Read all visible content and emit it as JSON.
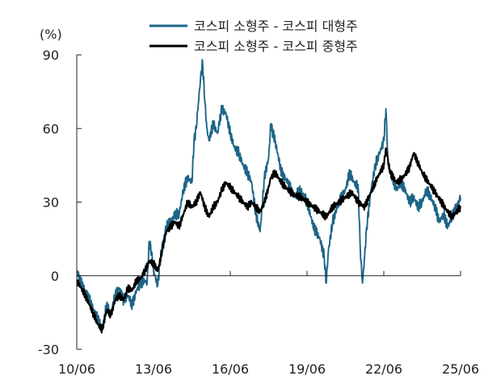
{
  "chart_data": {
    "type": "line",
    "unit_label": "(%)",
    "ylim": [
      -30,
      90
    ],
    "yticks": [
      -30,
      0,
      30,
      60,
      90
    ],
    "x_ticks": [
      "10/06",
      "13/06",
      "16/06",
      "19/06",
      "22/06",
      "25/06"
    ],
    "x_range": [
      "10/06",
      "25/06"
    ],
    "grid": false,
    "legend_position": "top-center",
    "series": [
      {
        "name": "코스피 소형주 - 코스피 대형주",
        "color": "#1c6587",
        "points": [
          [
            "10/06",
            2
          ],
          [
            "10/08",
            -3
          ],
          [
            "10/10",
            -6
          ],
          [
            "10/12",
            -10
          ],
          [
            "11/02",
            -14
          ],
          [
            "11/04",
            -18
          ],
          [
            "11/06",
            -22
          ],
          [
            "11/08",
            -12
          ],
          [
            "11/10",
            -16
          ],
          [
            "11/12",
            -8
          ],
          [
            "12/02",
            -5
          ],
          [
            "12/04",
            -10
          ],
          [
            "12/06",
            -8
          ],
          [
            "12/08",
            -12
          ],
          [
            "12/10",
            -6
          ],
          [
            "12/12",
            -3
          ],
          [
            "13/02",
            -2
          ],
          [
            "13/03",
            -3
          ],
          [
            "13/04",
            14
          ],
          [
            "13/05",
            10
          ],
          [
            "13/06",
            2
          ],
          [
            "13/08",
            -4
          ],
          [
            "13/09",
            5
          ],
          [
            "13/10",
            12
          ],
          [
            "13/12",
            20
          ],
          [
            "14/02",
            22
          ],
          [
            "14/04",
            25
          ],
          [
            "14/06",
            25
          ],
          [
            "14/08",
            35
          ],
          [
            "14/10",
            40
          ],
          [
            "14/12",
            38
          ],
          [
            "15/01",
            55
          ],
          [
            "15/02",
            60
          ],
          [
            "15/03",
            70
          ],
          [
            "15/04",
            80
          ],
          [
            "15/05",
            87
          ],
          [
            "15/06",
            72
          ],
          [
            "15/07",
            60
          ],
          [
            "15/08",
            55
          ],
          [
            "15/10",
            62
          ],
          [
            "15/12",
            58
          ],
          [
            "16/02",
            68
          ],
          [
            "16/04",
            66
          ],
          [
            "16/06",
            58
          ],
          [
            "16/08",
            52
          ],
          [
            "16/10",
            50
          ],
          [
            "16/12",
            45
          ],
          [
            "17/02",
            42
          ],
          [
            "17/04",
            38
          ],
          [
            "17/06",
            25
          ],
          [
            "17/08",
            18
          ],
          [
            "17/10",
            40
          ],
          [
            "17/12",
            48
          ],
          [
            "18/01",
            62
          ],
          [
            "18/02",
            58
          ],
          [
            "18/03",
            55
          ],
          [
            "18/06",
            42
          ],
          [
            "18/09",
            38
          ],
          [
            "18/12",
            32
          ],
          [
            "19/03",
            35
          ],
          [
            "19/06",
            30
          ],
          [
            "19/09",
            20
          ],
          [
            "19/12",
            15
          ],
          [
            "20/02",
            8
          ],
          [
            "20/03",
            -3
          ],
          [
            "20/04",
            10
          ],
          [
            "20/06",
            22
          ],
          [
            "20/09",
            30
          ],
          [
            "20/12",
            35
          ],
          [
            "21/02",
            42
          ],
          [
            "21/04",
            38
          ],
          [
            "21/06",
            36
          ],
          [
            "21/07",
            10
          ],
          [
            "21/08",
            -3
          ],
          [
            "21/09",
            8
          ],
          [
            "21/10",
            20
          ],
          [
            "21/12",
            35
          ],
          [
            "22/02",
            45
          ],
          [
            "22/04",
            50
          ],
          [
            "22/06",
            55
          ],
          [
            "22/07",
            68
          ],
          [
            "22/08",
            45
          ],
          [
            "22/10",
            40
          ],
          [
            "22/12",
            35
          ],
          [
            "23/02",
            38
          ],
          [
            "23/04",
            35
          ],
          [
            "23/06",
            30
          ],
          [
            "23/08",
            32
          ],
          [
            "23/10",
            28
          ],
          [
            "23/12",
            30
          ],
          [
            "24/02",
            35
          ],
          [
            "24/04",
            32
          ],
          [
            "24/06",
            28
          ],
          [
            "24/08",
            22
          ],
          [
            "24/10",
            25
          ],
          [
            "24/12",
            20
          ],
          [
            "25/02",
            24
          ],
          [
            "25/04",
            28
          ],
          [
            "25/06",
            32
          ]
        ]
      },
      {
        "name": "코스피 소형주 - 코스피 중형주",
        "color": "#000000",
        "points": [
          [
            "10/06",
            -2
          ],
          [
            "10/08",
            -5
          ],
          [
            "10/10",
            -8
          ],
          [
            "10/12",
            -12
          ],
          [
            "11/02",
            -16
          ],
          [
            "11/04",
            -20
          ],
          [
            "11/06",
            -22
          ],
          [
            "11/08",
            -14
          ],
          [
            "11/10",
            -16
          ],
          [
            "11/12",
            -10
          ],
          [
            "12/02",
            -8
          ],
          [
            "12/04",
            -10
          ],
          [
            "12/06",
            -5
          ],
          [
            "12/08",
            -6
          ],
          [
            "12/10",
            -2
          ],
          [
            "12/12",
            -1
          ],
          [
            "13/02",
            2
          ],
          [
            "13/04",
            6
          ],
          [
            "13/06",
            5
          ],
          [
            "13/08",
            2
          ],
          [
            "13/10",
            10
          ],
          [
            "13/12",
            18
          ],
          [
            "14/02",
            20
          ],
          [
            "14/04",
            22
          ],
          [
            "14/06",
            20
          ],
          [
            "14/08",
            25
          ],
          [
            "14/10",
            30
          ],
          [
            "14/12",
            28
          ],
          [
            "15/02",
            30
          ],
          [
            "15/04",
            34
          ],
          [
            "15/06",
            28
          ],
          [
            "15/08",
            24
          ],
          [
            "15/10",
            28
          ],
          [
            "15/12",
            30
          ],
          [
            "16/02",
            35
          ],
          [
            "16/04",
            38
          ],
          [
            "16/06",
            36
          ],
          [
            "16/08",
            34
          ],
          [
            "16/10",
            32
          ],
          [
            "16/12",
            30
          ],
          [
            "17/02",
            28
          ],
          [
            "17/04",
            30
          ],
          [
            "17/06",
            28
          ],
          [
            "17/08",
            26
          ],
          [
            "17/10",
            30
          ],
          [
            "17/12",
            36
          ],
          [
            "18/01",
            40
          ],
          [
            "18/03",
            42
          ],
          [
            "18/06",
            38
          ],
          [
            "18/09",
            35
          ],
          [
            "18/12",
            33
          ],
          [
            "19/03",
            32
          ],
          [
            "19/06",
            30
          ],
          [
            "19/09",
            28
          ],
          [
            "19/12",
            26
          ],
          [
            "20/03",
            24
          ],
          [
            "20/06",
            28
          ],
          [
            "20/09",
            30
          ],
          [
            "20/12",
            32
          ],
          [
            "21/03",
            34
          ],
          [
            "21/06",
            30
          ],
          [
            "21/09",
            28
          ],
          [
            "21/12",
            34
          ],
          [
            "22/03",
            40
          ],
          [
            "22/06",
            45
          ],
          [
            "22/07",
            52
          ],
          [
            "22/09",
            42
          ],
          [
            "22/12",
            38
          ],
          [
            "23/03",
            40
          ],
          [
            "23/06",
            44
          ],
          [
            "23/08",
            50
          ],
          [
            "23/10",
            46
          ],
          [
            "23/12",
            42
          ],
          [
            "24/03",
            38
          ],
          [
            "24/06",
            34
          ],
          [
            "24/09",
            30
          ],
          [
            "24/12",
            26
          ],
          [
            "25/02",
            24
          ],
          [
            "25/04",
            26
          ],
          [
            "25/06",
            28
          ]
        ]
      }
    ]
  }
}
